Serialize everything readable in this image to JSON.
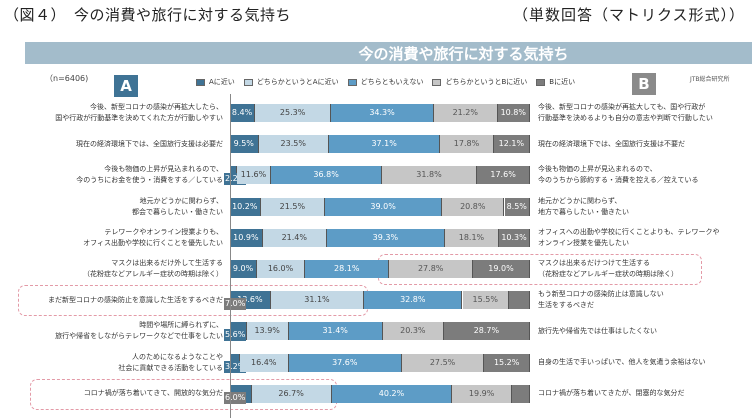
{
  "figure": {
    "title": "（図４）　今の消費や旅行に対する気持ち",
    "note": "（単数回答（マトリクス形式））",
    "banner": "今の消費や旅行に対する気持ち",
    "n_label": "（n=6406)",
    "a_label": "A",
    "b_label": "B",
    "source": "JTB総合研究所"
  },
  "chart_data": {
    "type": "bar",
    "orientation": "horizontal-stacked-100",
    "title": "今の消費や旅行に対する気持ち",
    "xlabel": "",
    "ylabel": "",
    "xlim": [
      0,
      100
    ],
    "unit": "%",
    "legend_position": "top",
    "legend": [
      "Aに近い",
      "どちらかというとAに近い",
      "どちらともいえない",
      "どちらかというとBに近い",
      "Bに近い"
    ],
    "colors": [
      "#3f7395",
      "#c3d8e5",
      "#5d9cc6",
      "#c6c6c6",
      "#7c7c7c"
    ],
    "rows": [
      {
        "a": "今後、新型コロナの感染が再拡大したら、\n国や行政が行動基準を決めてくれた方が行動しやすい",
        "b": "今後、新型コロナの感染が再拡大しても、国や行政が\n行動基準を決めるよりも自分の意志や判断で行動したい",
        "values": [
          8.4,
          25.3,
          34.3,
          21.2,
          10.8
        ],
        "highlight": ""
      },
      {
        "a": "現在の経済環境下では、全国旅行支援は必要だ",
        "b": "現在の経済環境下では、全国旅行支援は不要だ",
        "values": [
          9.5,
          23.5,
          37.1,
          17.8,
          12.1
        ],
        "highlight": ""
      },
      {
        "a": "今後も物価の上昇が見込まれるので、\n今のうちにお金を使う・消費をする／している",
        "b": "今後も物価の上昇が見込まれるので、\n今のうちから節約する・消費を控える／控えている",
        "values": [
          2.2,
          11.6,
          36.8,
          31.8,
          17.6
        ],
        "highlight": ""
      },
      {
        "a": "地元かどうかに関わらず、\n都会で暮らしたい・働きたい",
        "b": "地元かどうかに関わらず、\n地方で暮らしたい・働きたい",
        "values": [
          10.2,
          21.5,
          39.0,
          20.8,
          8.5
        ],
        "highlight": ""
      },
      {
        "a": "テレワークやオンライン授業よりも、\nオフィス出勤や学校に行くことを優先したい",
        "b": "オフィスへの出勤や学校に行くことよりも、テレワークや\nオンライン授業を優先したい",
        "values": [
          10.9,
          21.4,
          39.3,
          18.1,
          10.3
        ],
        "highlight": ""
      },
      {
        "a": "マスクは出来るだけ外して生活する\n（花粉症などアレルギー症状の時期は除く）",
        "b": "マスクは出来るだけつけて生活する\n（花粉症などアレルギー症状の時期は除く）",
        "values": [
          9.0,
          16.0,
          28.1,
          27.8,
          19.0
        ],
        "highlight": "B"
      },
      {
        "a": "まだ新型コロナの感染防止を意識した生活をするべきだ",
        "b": "もう新型コロナの感染防止は意識しない\n生活をするべきだ",
        "values": [
          13.6,
          31.1,
          32.8,
          15.5,
          7.0
        ],
        "highlight": "A"
      },
      {
        "a": "時間や場所に縛られずに、\n旅行や帰省をしながらテレワークなどで仕事をしたい",
        "b": "旅行先や帰省先では仕事はしたくない",
        "values": [
          5.6,
          13.9,
          31.4,
          20.3,
          28.7
        ],
        "highlight": ""
      },
      {
        "a": "人のためになるようなことや\n社会に貢献できる活動をしている",
        "b": "自身の生活で手いっぱいで、他人を気遣う余裕はない",
        "values": [
          3.2,
          16.4,
          37.6,
          27.5,
          15.2
        ],
        "highlight": ""
      },
      {
        "a": "コロナ禍が落ち着いてきて、開放的な気分だ",
        "b": "コロナ禍が落ち着いてきたが、閉塞的な気分だ",
        "values": [
          7.2,
          26.7,
          40.2,
          19.9,
          6.0
        ],
        "highlight": "A"
      }
    ]
  }
}
